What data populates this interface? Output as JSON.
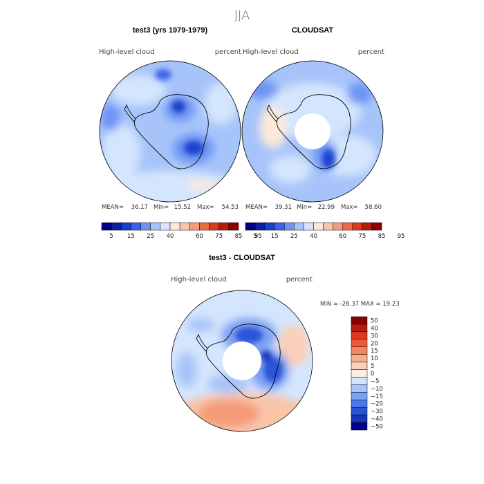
{
  "figure": {
    "season": "JJA",
    "panels": [
      {
        "title": "test3 (yrs 1979-1979)",
        "variable": "High-level cloud",
        "units": "percent",
        "stats": {
          "mean_label": "MEAN=",
          "mean": "36.17",
          "min_label": "Min=",
          "min": "15.52",
          "max_label": "Max=",
          "max": "54.53"
        }
      },
      {
        "title": "CLOUDSAT",
        "variable": "High-level cloud",
        "units": "percent",
        "stats": {
          "mean_label": "MEAN=",
          "mean": "39.31",
          "min_label": "Min=",
          "min": "22.99",
          "max_label": "Max=",
          "max": "58.60"
        }
      }
    ],
    "diff_panel": {
      "title": "test3 - CLOUDSAT",
      "variable": "High-level cloud",
      "units": "percent",
      "stats_text": "MIN = -26.37 MAX =  19.23"
    },
    "colorbar_main": {
      "colors": [
        "#00008B",
        "#0A1F9E",
        "#1A3FCB",
        "#3A63E8",
        "#6E94F3",
        "#A7C4FA",
        "#D4E6FD",
        "#FCE9DA",
        "#F9C4A8",
        "#F49B79",
        "#EE6A47",
        "#DC3A1C",
        "#B81A0D",
        "#8B0000"
      ],
      "labels": [
        "5",
        "15",
        "25",
        "40",
        "60",
        "75",
        "85",
        "95"
      ]
    },
    "colorbar_diff": {
      "colors": [
        "#8B0000",
        "#B81A0D",
        "#DC3A1C",
        "#EE5A37",
        "#F48561",
        "#F9AE8C",
        "#FBD0B8",
        "#FDEEE2",
        "#D4E6FD",
        "#A7C4FA",
        "#7CA1F3",
        "#4C78EA",
        "#2A52D8",
        "#1A35B8",
        "#00008B"
      ],
      "labels": [
        "50",
        "40",
        "30",
        "20",
        "15",
        "10",
        "5",
        "0",
        "−5",
        "−10",
        "−15",
        "−20",
        "−30",
        "−40",
        "−50"
      ]
    }
  },
  "chart_data": [
    {
      "type": "heatmap",
      "title": "test3 (yrs 1979-1979)",
      "subtitle": "High-level cloud",
      "units": "percent",
      "projection": "south polar stereographic",
      "levels": [
        5,
        15,
        25,
        40,
        60,
        75,
        85,
        95
      ],
      "mean": 36.17,
      "min": 15.52,
      "max": 54.53
    },
    {
      "type": "heatmap",
      "title": "CLOUDSAT",
      "subtitle": "High-level cloud",
      "units": "percent",
      "projection": "south polar stereographic",
      "levels": [
        5,
        15,
        25,
        40,
        60,
        75,
        85,
        95
      ],
      "mean": 39.31,
      "min": 22.99,
      "max": 58.6
    },
    {
      "type": "heatmap",
      "title": "test3 - CLOUDSAT",
      "subtitle": "High-level cloud",
      "units": "percent",
      "projection": "south polar stereographic",
      "levels": [
        -50,
        -40,
        -30,
        -20,
        -15,
        -10,
        -5,
        0,
        5,
        10,
        15,
        20,
        30,
        40,
        50
      ],
      "min": -26.37,
      "max": 19.23
    }
  ]
}
